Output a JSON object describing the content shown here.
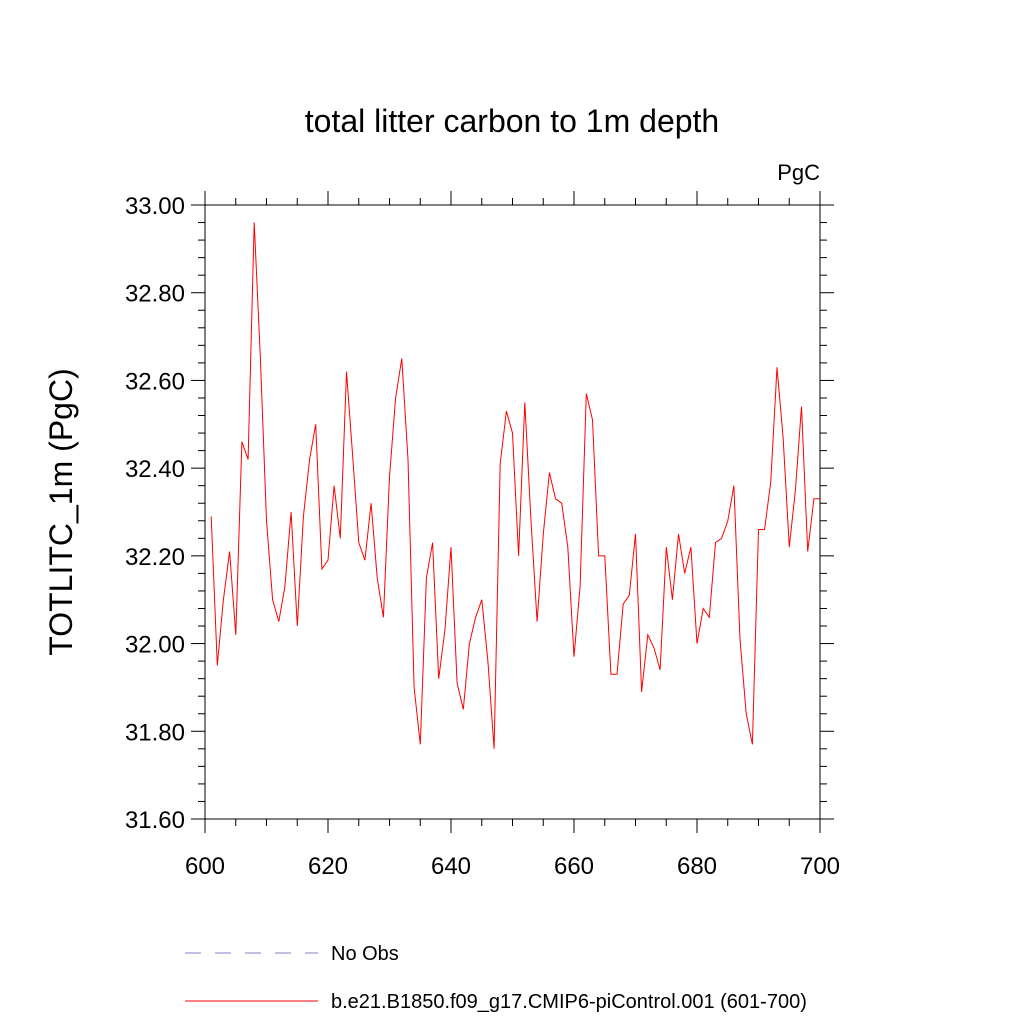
{
  "chart_data": {
    "type": "line",
    "title": "total litter carbon to 1m depth",
    "units_label": "PgC",
    "ylabel": "TOTLITC_1m  (PgC)",
    "xlabel": "",
    "xlim": [
      600,
      700
    ],
    "ylim": [
      31.6,
      33.0
    ],
    "x_ticks": [
      600,
      620,
      640,
      660,
      680,
      700
    ],
    "x_tick_labels": [
      "600",
      "620",
      "640",
      "660",
      "680",
      "700"
    ],
    "y_ticks": [
      31.6,
      31.8,
      32.0,
      32.2,
      32.4,
      32.6,
      32.8,
      33.0
    ],
    "y_tick_labels": [
      "31.60",
      "31.80",
      "32.00",
      "32.20",
      "32.40",
      "32.60",
      "32.80",
      "33.00"
    ],
    "legend_position": "bottom",
    "series": [
      {
        "name": "No Obs",
        "color": "#8080c0",
        "style": "dashed",
        "x": [],
        "values": []
      },
      {
        "name": "b.e21.B1850.f09_g17.CMIP6-piControl.001 (601-700)",
        "color": "#ff0000",
        "style": "solid",
        "x": [
          601,
          602,
          603,
          604,
          605,
          606,
          607,
          608,
          609,
          610,
          611,
          612,
          613,
          614,
          615,
          616,
          617,
          618,
          619,
          620,
          621,
          622,
          623,
          624,
          625,
          626,
          627,
          628,
          629,
          630,
          631,
          632,
          633,
          634,
          635,
          636,
          637,
          638,
          639,
          640,
          641,
          642,
          643,
          644,
          645,
          646,
          647,
          648,
          649,
          650,
          651,
          652,
          653,
          654,
          655,
          656,
          657,
          658,
          659,
          660,
          661,
          662,
          663,
          664,
          665,
          666,
          667,
          668,
          669,
          670,
          671,
          672,
          673,
          674,
          675,
          676,
          677,
          678,
          679,
          680,
          681,
          682,
          683,
          684,
          685,
          686,
          687,
          688,
          689,
          690,
          691,
          692,
          693,
          694,
          695,
          696,
          697,
          698,
          699,
          700
        ],
        "values": [
          32.29,
          31.95,
          32.1,
          32.21,
          32.02,
          32.46,
          32.42,
          32.96,
          32.65,
          32.28,
          32.1,
          32.05,
          32.13,
          32.3,
          32.04,
          32.29,
          32.42,
          32.5,
          32.17,
          32.19,
          32.36,
          32.24,
          32.62,
          32.43,
          32.23,
          32.19,
          32.32,
          32.15,
          32.06,
          32.38,
          32.56,
          32.65,
          32.42,
          31.9,
          31.77,
          32.15,
          32.23,
          31.92,
          32.03,
          32.22,
          31.91,
          31.85,
          32.0,
          32.06,
          32.1,
          31.96,
          31.76,
          32.41,
          32.53,
          32.48,
          32.2,
          32.55,
          32.28,
          32.05,
          32.25,
          32.39,
          32.33,
          32.32,
          32.22,
          31.97,
          32.13,
          32.57,
          32.51,
          32.2,
          32.2,
          31.93,
          31.93,
          32.09,
          32.11,
          32.25,
          31.89,
          32.02,
          31.99,
          31.94,
          32.22,
          32.1,
          32.25,
          32.16,
          32.22,
          32.0,
          32.08,
          32.06,
          32.23,
          32.24,
          32.28,
          32.36,
          32.01,
          31.84,
          31.77,
          32.26,
          32.26,
          32.37,
          32.63,
          32.47,
          32.22,
          32.35,
          32.54,
          32.21,
          32.33,
          32.33
        ]
      }
    ]
  }
}
